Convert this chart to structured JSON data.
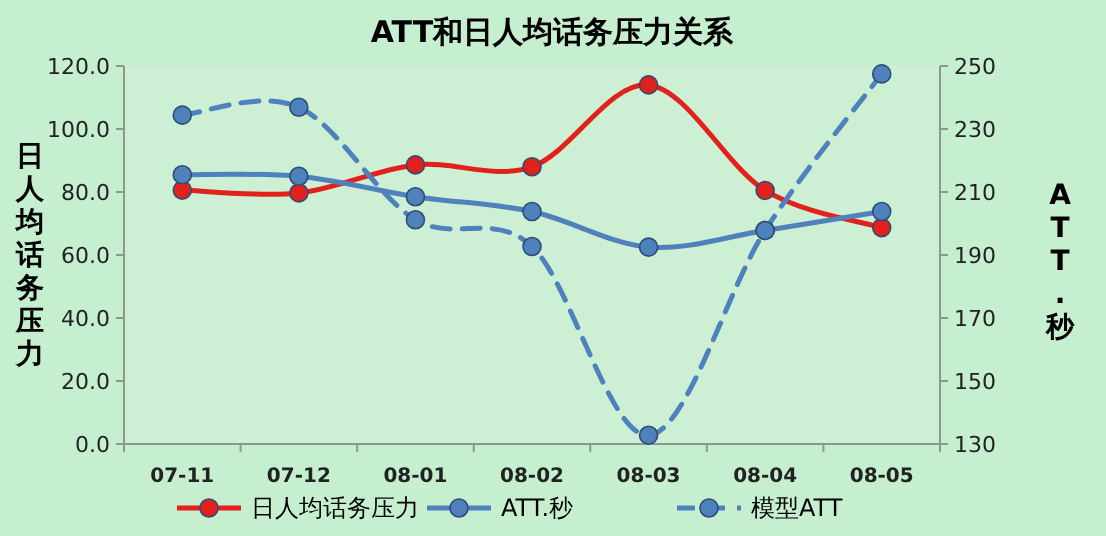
{
  "chart_data": {
    "type": "line",
    "title": "ATT和日人均话务压力关系",
    "ylabel": "日人均话务压力",
    "y2label": "ATT.秒",
    "categories": [
      "07-11",
      "07-12",
      "08-01",
      "08-02",
      "08-03",
      "08-04",
      "08-05"
    ],
    "series": [
      {
        "name": "日人均话务压力",
        "color": "#e3211c",
        "values": [
          80.6,
          79.7,
          88.6,
          88.0,
          114.0,
          80.5,
          68.7
        ]
      },
      {
        "name": "ATT.秒",
        "color": "#4f81bd",
        "axis": "y2",
        "values": [
          215.5,
          215,
          208.5,
          203.8,
          192.5,
          197.8,
          203.8
        ]
      },
      {
        "name": "模型ATT",
        "color": "#4f81bd",
        "axis": "y2",
        "line_style": "dashed",
        "values": [
          234.4,
          236.9,
          201.2,
          192.7,
          132.8,
          197.8,
          247.5
        ]
      }
    ],
    "ylim": [
      0,
      120
    ],
    "yticks": [
      {
        "value": 0,
        "label": "0.0"
      },
      {
        "value": 20,
        "label": "20.0"
      },
      {
        "value": 40,
        "label": "40.0"
      },
      {
        "value": 60,
        "label": "60.0"
      },
      {
        "value": 80,
        "label": "80.0"
      },
      {
        "value": 100,
        "label": "100.0"
      },
      {
        "value": 120,
        "label": "120.0"
      }
    ],
    "y2lim": [
      130,
      250
    ],
    "y2ticks": [
      130,
      150,
      170,
      190,
      210,
      230,
      250
    ],
    "marker": "circle",
    "line_style": "solid",
    "grid": false,
    "legend": "bottom"
  }
}
